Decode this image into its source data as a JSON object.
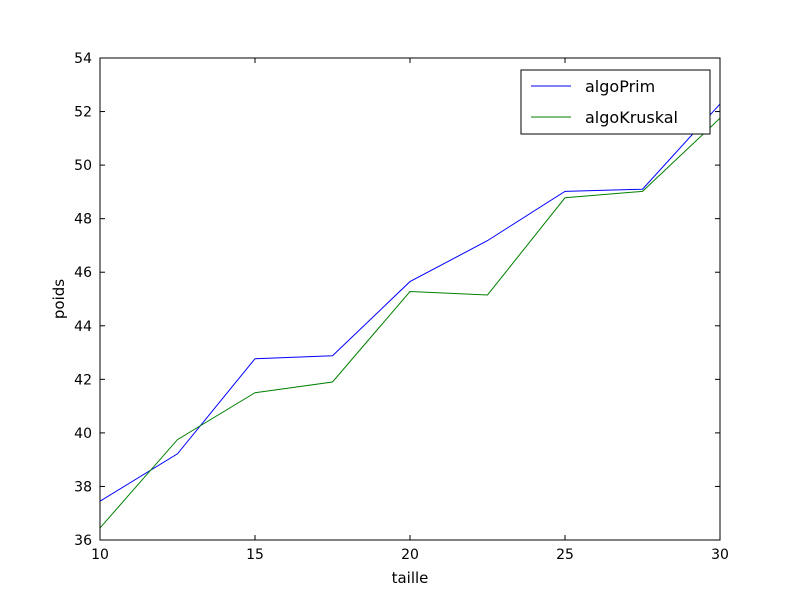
{
  "chart_data": {
    "type": "line",
    "title": "",
    "xlabel": "taille",
    "ylabel": "poids",
    "xlim": [
      10,
      30
    ],
    "ylim": [
      36,
      54
    ],
    "xticks": [
      10,
      15,
      20,
      25,
      30
    ],
    "yticks": [
      36,
      38,
      40,
      42,
      44,
      46,
      48,
      50,
      52,
      54
    ],
    "grid": false,
    "legend_position": "top-right",
    "x": [
      10,
      12.5,
      15,
      17.5,
      20,
      22.5,
      25,
      27.5,
      30
    ],
    "series": [
      {
        "name": "algoPrim",
        "color": "#0000ff",
        "values": [
          37.45,
          39.22,
          42.77,
          42.88,
          45.65,
          47.18,
          49.02,
          49.1,
          52.28
        ]
      },
      {
        "name": "algoKruskal",
        "color": "#008000",
        "values": [
          36.45,
          39.75,
          41.5,
          41.9,
          45.28,
          45.15,
          48.78,
          49.02,
          51.75
        ]
      }
    ]
  }
}
